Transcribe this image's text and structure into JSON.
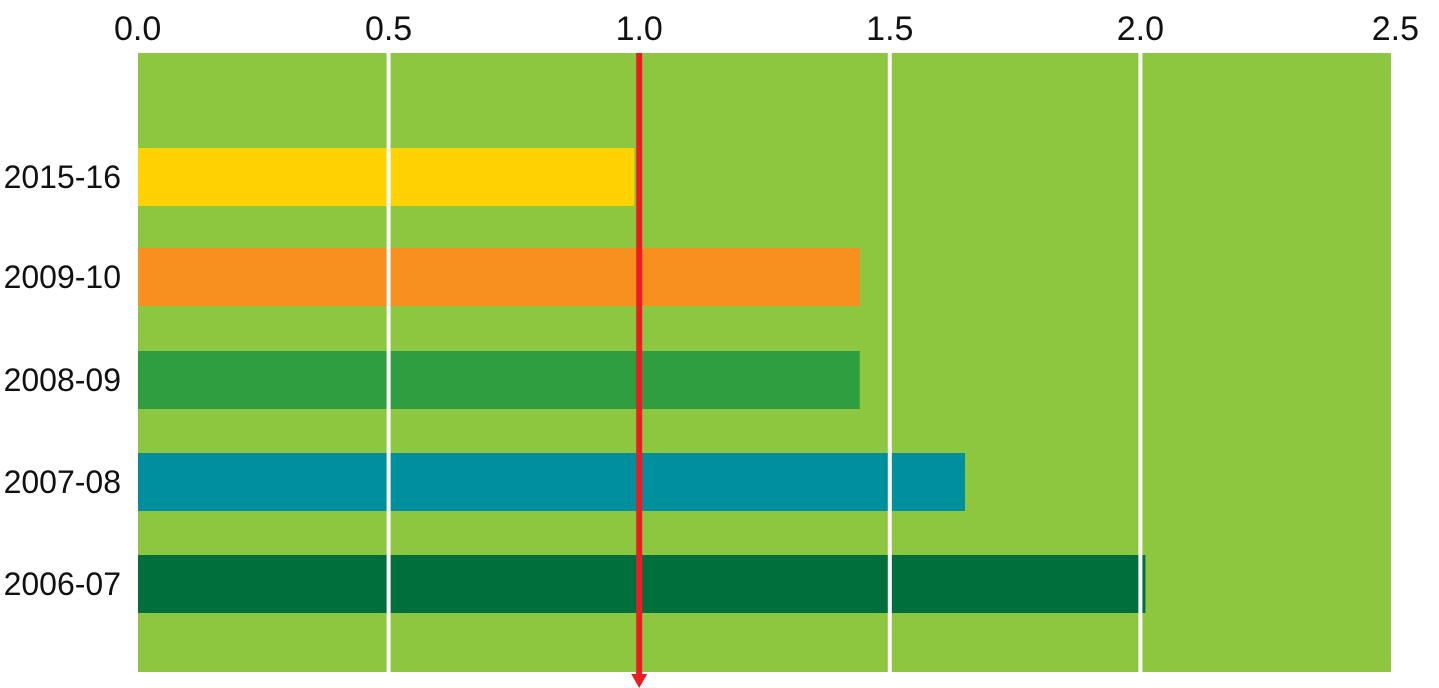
{
  "chart_data": {
    "type": "bar",
    "orientation": "horizontal",
    "title": "",
    "xlabel": "",
    "ylabel": "",
    "xlim": [
      0,
      2.5
    ],
    "x_ticks": [
      "0.0",
      "0.5",
      "1.0",
      "1.5",
      "2.0",
      "2.5"
    ],
    "x_tick_values": [
      0,
      0.5,
      1.0,
      1.5,
      2.0,
      2.5
    ],
    "x_axis_position": "top",
    "grid": true,
    "legend": "none",
    "reference_line": {
      "value": 1.0,
      "color": "#ed1c24",
      "style": "arrow-down"
    },
    "categories": [
      "2015-16",
      "2009-10",
      "2008-09",
      "2007-08",
      "2006-07"
    ],
    "values": [
      0.99,
      1.44,
      1.44,
      1.65,
      2.01
    ],
    "bar_colors": [
      "#ffd200",
      "#f7901e",
      "#2f9e41",
      "#008f9c",
      "#006f3c"
    ],
    "plot_background": "#8dc63f",
    "gridline_color": "#ffffff"
  }
}
